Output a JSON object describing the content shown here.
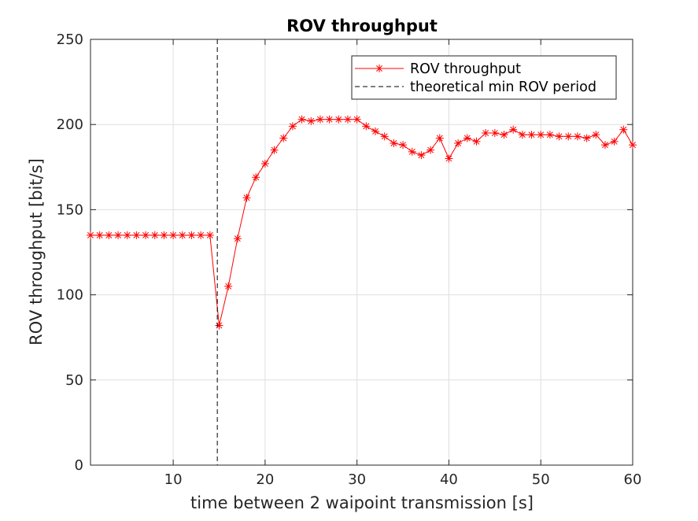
{
  "chart_data": {
    "type": "line",
    "title": "ROV throughput",
    "xlabel": "time between 2 waipoint transmission [s]",
    "ylabel": "ROV throughput [bit/s]",
    "xlim": [
      1,
      60
    ],
    "ylim": [
      0,
      250
    ],
    "xticks": [
      10,
      20,
      30,
      40,
      50,
      60
    ],
    "yticks": [
      0,
      50,
      100,
      150,
      200,
      250
    ],
    "grid": true,
    "legend_position": "top-right",
    "series": [
      {
        "name": "ROV throughput",
        "color": "#ff0000",
        "marker": "asterisk",
        "x": [
          1,
          2,
          3,
          4,
          5,
          6,
          7,
          8,
          9,
          10,
          11,
          12,
          13,
          14,
          15,
          16,
          17,
          18,
          19,
          20,
          21,
          22,
          23,
          24,
          25,
          26,
          27,
          28,
          29,
          30,
          31,
          32,
          33,
          34,
          35,
          36,
          37,
          38,
          39,
          40,
          41,
          42,
          43,
          44,
          45,
          46,
          47,
          48,
          49,
          50,
          51,
          52,
          53,
          54,
          55,
          56,
          57,
          58,
          59,
          60
        ],
        "values": [
          135,
          135,
          135,
          135,
          135,
          135,
          135,
          135,
          135,
          135,
          135,
          135,
          135,
          135,
          82,
          105,
          133,
          157,
          169,
          177,
          185,
          192,
          199,
          203,
          202,
          203,
          203,
          203,
          203,
          203,
          199,
          196,
          193,
          189,
          188,
          184,
          182,
          185,
          192,
          180,
          189,
          192,
          190,
          195,
          195,
          194,
          197,
          194,
          194,
          194,
          194,
          193,
          193,
          193,
          192,
          194,
          188,
          190,
          197,
          188
        ]
      },
      {
        "name": "theoretical min ROV period",
        "color": "#000000",
        "style": "dashed",
        "vertical_x": 14.8
      }
    ]
  }
}
